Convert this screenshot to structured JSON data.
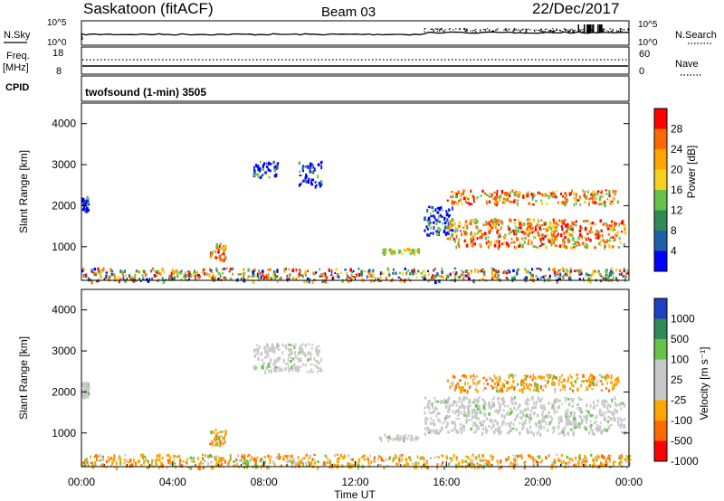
{
  "header": {
    "station": "Saskatoon (fitACF)",
    "beam": "Beam 03",
    "date": "22/Dec/2017"
  },
  "top_panels": {
    "nsky_label": "N.Sky",
    "nsearch_label": "N.Search",
    "freq_label": "Freq.",
    "freq_unit": "[MHz]",
    "cpid_label": "CPID",
    "nave_label": "Nave",
    "noise_ticks_left": [
      "10^5",
      "10^0"
    ],
    "noise_ticks_right": [
      "10^5",
      "10^0"
    ],
    "freq_ticks": [
      "18",
      "8"
    ],
    "nave_ticks": [
      "60",
      "0"
    ],
    "cpid_text": "twofsound (1-min) 3505"
  },
  "chart_data": [
    {
      "type": "heatmap",
      "name": "power",
      "ylabel": "Slant Range [km]",
      "xlabel": "",
      "ylim": [
        180,
        4500
      ],
      "y_ticks": [
        1000,
        2000,
        3000,
        4000
      ],
      "colorbar_label": "Power [dB]",
      "colorbar_ticks": [
        "28",
        "24",
        "20",
        "16",
        "12",
        "8",
        "4"
      ],
      "colorbar_colors": [
        "#ff0000",
        "#ff6a00",
        "#ffa500",
        "#f5d020",
        "#66c24a",
        "#2e8b57",
        "#1e5fa8",
        "#0000ff"
      ],
      "features": [
        {
          "t": [
            0.0,
            0.3
          ],
          "range": [
            1900,
            2250
          ],
          "level": "low"
        },
        {
          "t": [
            5.6,
            6.3
          ],
          "range": [
            700,
            1100
          ],
          "level": "high"
        },
        {
          "t": [
            7.5,
            8.6
          ],
          "range": [
            2700,
            3100
          ],
          "level": "low"
        },
        {
          "t": [
            9.5,
            10.5
          ],
          "range": [
            2500,
            3100
          ],
          "level": "low"
        },
        {
          "t": [
            13.0,
            14.8
          ],
          "range": [
            850,
            980
          ],
          "level": "mid"
        },
        {
          "t": [
            15.0,
            16.3
          ],
          "range": [
            1300,
            2000
          ],
          "level": "low"
        },
        {
          "t": [
            16.0,
            23.5
          ],
          "range": [
            2050,
            2400
          ],
          "level": "high"
        },
        {
          "t": [
            16.0,
            23.8
          ],
          "range": [
            1000,
            1700
          ],
          "level": "high"
        },
        {
          "t": [
            0.0,
            24.0
          ],
          "range": [
            180,
            500
          ],
          "level": "mixed"
        }
      ]
    },
    {
      "type": "heatmap",
      "name": "velocity",
      "ylabel": "Slant Range [km]",
      "xlabel": "Time UT",
      "ylim": [
        180,
        4500
      ],
      "y_ticks": [
        1000,
        2000,
        3000,
        4000
      ],
      "x_ticks": [
        "00:00",
        "04:00",
        "08:00",
        "12:00",
        "16:00",
        "20:00",
        "00:00"
      ],
      "colorbar_label": "Velocity [m s⁻¹]",
      "colorbar_ticks": [
        "1000",
        "500",
        "100",
        "25",
        "-25",
        "-100",
        "-500",
        "-1000"
      ],
      "colorbar_colors": [
        "#1e3fbf",
        "#2e8b57",
        "#66c24a",
        "#c8c8c8",
        "#c8c8c8",
        "#ffa500",
        "#ff6a00",
        "#ff0000"
      ],
      "features": [
        {
          "t": [
            0.0,
            0.3
          ],
          "range": [
            1900,
            2250
          ],
          "level": "ground"
        },
        {
          "t": [
            5.6,
            6.3
          ],
          "range": [
            700,
            1100
          ],
          "level": "neg"
        },
        {
          "t": [
            7.5,
            10.5
          ],
          "range": [
            2500,
            3200
          ],
          "level": "ground"
        },
        {
          "t": [
            13.0,
            14.8
          ],
          "range": [
            850,
            980
          ],
          "level": "ground"
        },
        {
          "t": [
            15.0,
            23.8
          ],
          "range": [
            1000,
            1900
          ],
          "level": "ground"
        },
        {
          "t": [
            16.0,
            23.5
          ],
          "range": [
            2050,
            2450
          ],
          "level": "neg"
        },
        {
          "t": [
            0.0,
            24.0
          ],
          "range": [
            180,
            500
          ],
          "level": "neg"
        }
      ]
    }
  ]
}
